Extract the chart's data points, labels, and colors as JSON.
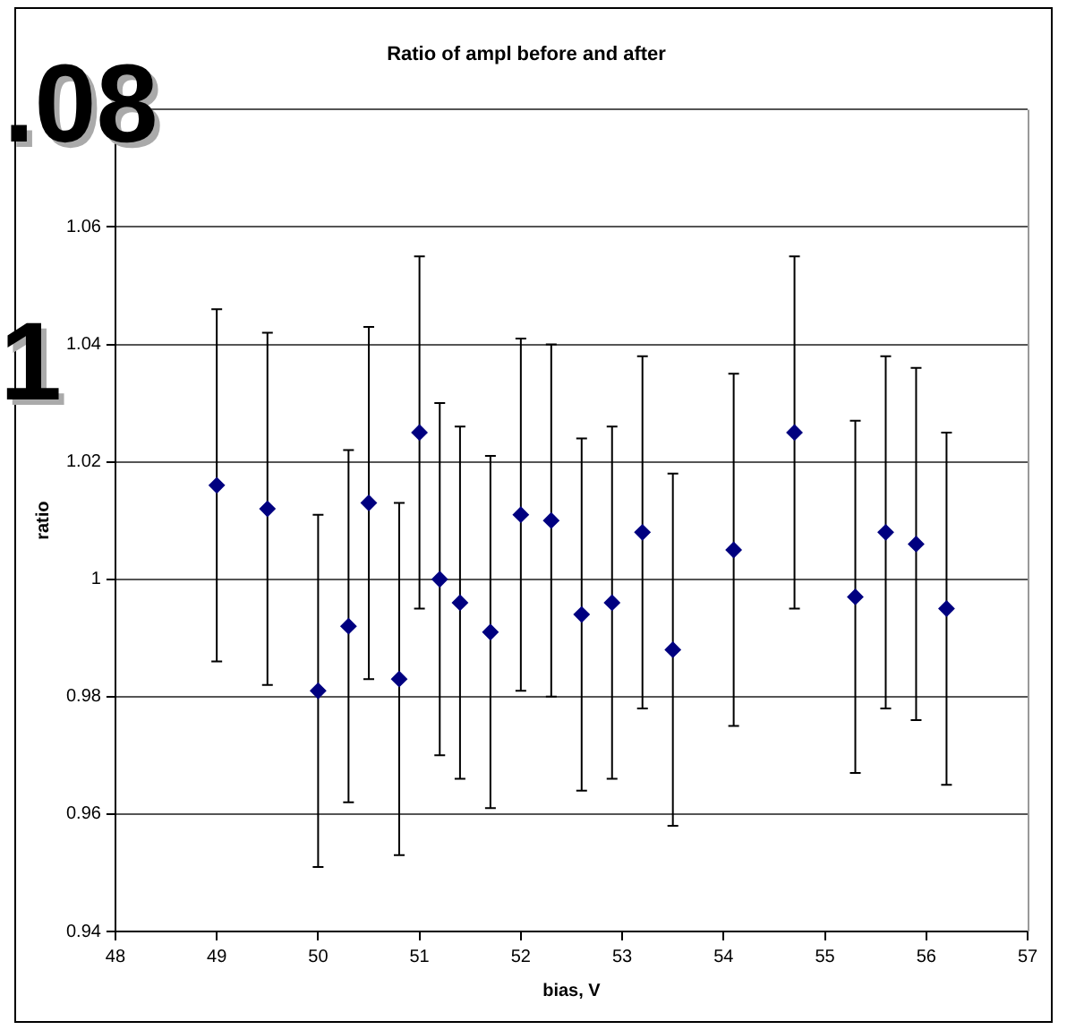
{
  "chart_data": {
    "type": "scatter",
    "title": "Ratio of ampl before and after",
    "xlabel": "bias, V",
    "ylabel": "ratio",
    "x": [
      49,
      49.5,
      50,
      50.3,
      50.5,
      50.8,
      51,
      51.2,
      51.4,
      51.7,
      52,
      52.3,
      52.6,
      52.9,
      53.2,
      53.5,
      54.1,
      54.7,
      55.3,
      55.6,
      55.9,
      56.2
    ],
    "values": [
      1.016,
      1.012,
      0.981,
      0.992,
      1.013,
      0.983,
      1.025,
      1.0,
      0.996,
      0.991,
      1.011,
      1.01,
      0.994,
      0.996,
      1.008,
      0.988,
      1.005,
      1.025,
      0.997,
      1.008,
      1.006,
      0.995
    ],
    "errors": [
      0.03,
      0.03,
      0.03,
      0.03,
      0.03,
      0.03,
      0.03,
      0.03,
      0.03,
      0.03,
      0.03,
      0.03,
      0.03,
      0.03,
      0.03,
      0.03,
      0.03,
      0.03,
      0.03,
      0.03,
      0.03,
      0.03
    ],
    "color": "#000080",
    "marker": "diamond",
    "grid": "y",
    "legend": false,
    "xlim": [
      48,
      57
    ],
    "xticks": [
      48,
      49,
      50,
      51,
      52,
      53,
      54,
      55,
      56,
      57
    ],
    "ylim": [
      0.94,
      1.08
    ],
    "yticks": [
      0.94,
      0.96,
      0.98,
      1,
      1.02,
      1.04,
      1.06,
      {
        "value": 1.08,
        "label": null
      }
    ],
    "annotations": [
      ".08",
      "1"
    ]
  }
}
